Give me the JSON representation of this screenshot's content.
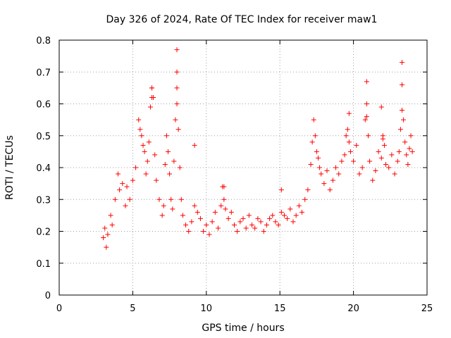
{
  "chart_data": {
    "type": "scatter",
    "title": "Day 326 of 2024, Rate Of TEC Index for receiver maw1",
    "xlabel": "GPS time / hours",
    "ylabel": "ROTI / TECUs",
    "xlim": [
      0,
      25
    ],
    "ylim": [
      0,
      0.8
    ],
    "x_ticks": [
      "0",
      "5",
      "10",
      "15",
      "20",
      "25"
    ],
    "y_ticks": [
      "0",
      "0.1",
      "0.2",
      "0.3",
      "0.4",
      "0.5",
      "0.6",
      "0.7",
      "0.8"
    ],
    "grid": true,
    "marker": "+",
    "marker_color": "#ff0000",
    "series": [
      {
        "x": [
          3.0,
          3.1,
          3.2,
          3.3,
          3.5,
          3.6,
          3.8,
          4.0,
          4.1,
          4.3,
          4.5,
          4.6,
          4.8,
          5.0,
          5.2,
          5.4,
          5.5,
          5.6,
          5.7,
          5.8,
          5.9,
          6.0,
          6.1,
          6.2,
          6.3,
          6.4,
          6.5,
          6.6,
          6.8,
          7.0,
          7.1,
          7.2,
          7.3,
          7.4,
          7.5,
          7.6,
          7.7,
          7.8,
          7.9,
          8.0,
          8.1,
          8.2,
          8.3,
          8.4,
          8.6,
          8.8,
          9.0,
          9.2,
          9.4,
          9.6,
          9.8,
          10.0,
          10.2,
          10.4,
          10.6,
          10.8,
          11.0,
          11.1,
          11.2,
          11.3,
          11.5,
          11.7,
          11.9,
          12.1,
          12.3,
          12.5,
          12.7,
          12.9,
          13.1,
          13.3,
          13.5,
          13.7,
          13.9,
          14.1,
          14.3,
          14.5,
          14.7,
          14.9,
          15.1,
          15.3,
          15.5,
          15.7,
          15.9,
          16.1,
          16.3,
          16.5,
          16.7,
          16.9,
          17.1,
          17.2,
          17.3,
          17.4,
          17.5,
          17.6,
          17.7,
          17.8,
          18.0,
          18.2,
          18.4,
          18.6,
          18.8,
          19.0,
          19.2,
          19.4,
          19.5,
          19.6,
          19.7,
          19.8,
          20.0,
          20.2,
          20.4,
          20.6,
          20.8,
          20.9,
          21.0,
          21.1,
          21.3,
          21.5,
          21.7,
          21.9,
          22.0,
          22.1,
          22.2,
          22.4,
          22.6,
          22.8,
          23.0,
          23.1,
          23.2,
          23.3,
          23.4,
          23.5,
          23.6,
          23.7,
          23.8,
          23.9,
          24.0,
          8.0,
          8.0,
          8.0,
          6.3,
          6.3,
          23.3,
          23.3,
          20.9,
          20.9,
          21.9,
          9.2,
          11.2,
          15.1,
          19.7,
          22.0
        ],
        "y": [
          0.18,
          0.21,
          0.15,
          0.19,
          0.25,
          0.22,
          0.3,
          0.38,
          0.33,
          0.35,
          0.28,
          0.34,
          0.3,
          0.36,
          0.4,
          0.55,
          0.52,
          0.5,
          0.47,
          0.45,
          0.38,
          0.42,
          0.48,
          0.59,
          0.65,
          0.62,
          0.44,
          0.36,
          0.3,
          0.25,
          0.28,
          0.41,
          0.5,
          0.45,
          0.38,
          0.3,
          0.27,
          0.42,
          0.55,
          0.7,
          0.52,
          0.4,
          0.3,
          0.25,
          0.22,
          0.2,
          0.23,
          0.28,
          0.26,
          0.24,
          0.2,
          0.22,
          0.19,
          0.23,
          0.26,
          0.21,
          0.28,
          0.34,
          0.3,
          0.27,
          0.24,
          0.26,
          0.22,
          0.2,
          0.23,
          0.24,
          0.21,
          0.25,
          0.22,
          0.21,
          0.24,
          0.23,
          0.2,
          0.22,
          0.24,
          0.25,
          0.23,
          0.22,
          0.26,
          0.25,
          0.24,
          0.27,
          0.23,
          0.25,
          0.28,
          0.26,
          0.3,
          0.33,
          0.41,
          0.48,
          0.55,
          0.5,
          0.45,
          0.43,
          0.4,
          0.38,
          0.35,
          0.39,
          0.33,
          0.36,
          0.4,
          0.38,
          0.42,
          0.44,
          0.5,
          0.52,
          0.48,
          0.45,
          0.42,
          0.47,
          0.38,
          0.4,
          0.55,
          0.6,
          0.5,
          0.42,
          0.36,
          0.39,
          0.45,
          0.43,
          0.5,
          0.47,
          0.41,
          0.4,
          0.44,
          0.38,
          0.42,
          0.45,
          0.52,
          0.58,
          0.55,
          0.48,
          0.44,
          0.41,
          0.46,
          0.5,
          0.45,
          0.77,
          0.65,
          0.6,
          0.65,
          0.62,
          0.73,
          0.66,
          0.67,
          0.56,
          0.59,
          0.47,
          0.34,
          0.33,
          0.57,
          0.49
        ]
      }
    ]
  }
}
